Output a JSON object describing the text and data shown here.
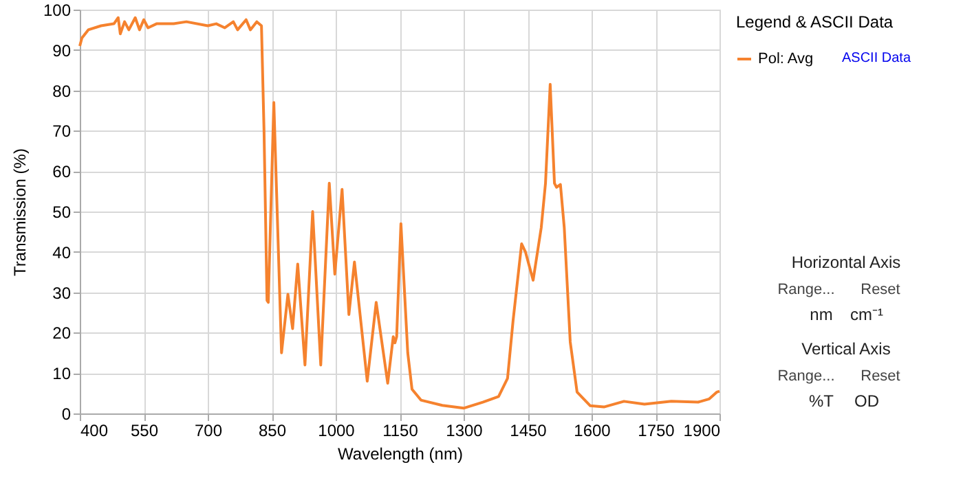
{
  "chart_data": {
    "type": "line",
    "xlabel": "Wavelength (nm)",
    "ylabel": "Transmission (%)",
    "legend_title": "Legend & ASCII Data",
    "x": [
      400,
      405,
      420,
      450,
      480,
      490,
      495,
      505,
      515,
      530,
      540,
      550,
      560,
      580,
      620,
      650,
      700,
      720,
      740,
      760,
      770,
      790,
      800,
      815,
      826,
      832,
      839,
      842,
      855,
      873,
      888,
      899,
      911,
      928,
      946,
      965,
      985,
      998,
      1015,
      1031,
      1044,
      1074,
      1095,
      1122,
      1135,
      1139,
      1143,
      1153,
      1169,
      1179,
      1200,
      1250,
      1300,
      1345,
      1382,
      1403,
      1416,
      1436,
      1445,
      1463,
      1482,
      1492,
      1503,
      1513,
      1518,
      1527,
      1536,
      1550,
      1566,
      1597,
      1629,
      1676,
      1724,
      1787,
      1850,
      1876,
      1894,
      1900
    ],
    "series": [
      {
        "name": "Pol: Avg",
        "color": "#f5822e",
        "values": [
          91,
          93,
          95,
          96,
          96.5,
          98,
          94,
          97,
          95,
          98,
          95,
          97.5,
          95.5,
          96.5,
          96.5,
          97,
          96,
          96.5,
          95.5,
          97,
          95,
          97.5,
          95,
          97,
          96,
          70,
          28,
          27.5,
          77,
          15,
          29.5,
          21,
          37,
          12,
          50,
          12,
          57,
          34.5,
          55.5,
          24.5,
          37.5,
          8,
          27.5,
          7.5,
          19,
          17.5,
          19,
          47,
          15,
          6,
          3.3,
          2,
          1.3,
          2.8,
          4.2,
          8.7,
          23,
          42,
          40,
          33,
          46,
          57,
          81.5,
          57,
          56,
          56.7,
          46,
          17.7,
          5.3,
          1.9,
          1.6,
          3,
          2.3,
          3,
          2.8,
          3.6,
          5.3,
          5.5
        ]
      }
    ],
    "xlim": [
      400,
      1900
    ],
    "xticks": [
      400,
      550,
      700,
      850,
      1000,
      1150,
      1300,
      1450,
      1600,
      1750,
      1900
    ],
    "ylim": [
      0,
      100
    ],
    "yticks": [
      0,
      10,
      20,
      30,
      40,
      50,
      60,
      70,
      80,
      90,
      100
    ],
    "grid": true,
    "legend": "top right",
    "marker": "none",
    "line_style": "solid",
    "annotations": [
      "ASCII Data",
      "Horizontal Axis",
      "Range...",
      "Reset",
      "nm",
      "cm⁻¹",
      "Vertical Axis",
      "Range...",
      "Reset",
      "%T",
      "OD"
    ]
  }
}
